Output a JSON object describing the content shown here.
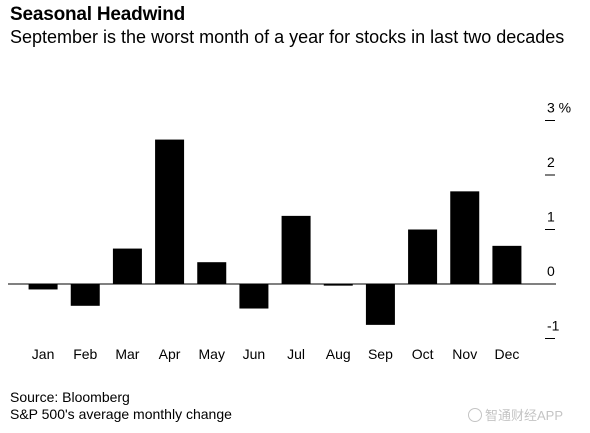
{
  "header": {
    "title": "Seasonal Headwind",
    "subtitle": "September is the worst month of a year for stocks in last two decades"
  },
  "footer": {
    "source": "Source: Bloomberg",
    "note": "S&P 500's average monthly change"
  },
  "watermark": {
    "text": "智通财经APP"
  },
  "chart_data": {
    "type": "bar",
    "categories": [
      "Jan",
      "Feb",
      "Mar",
      "Apr",
      "May",
      "Jun",
      "Jul",
      "Aug",
      "Sep",
      "Oct",
      "Nov",
      "Dec"
    ],
    "values": [
      -0.1,
      -0.4,
      0.65,
      2.65,
      0.4,
      -0.45,
      1.25,
      -0.03,
      -0.75,
      1.0,
      1.7,
      0.7
    ],
    "y_ticks": [
      {
        "value": 3,
        "label": "3 %"
      },
      {
        "value": 2,
        "label": "2"
      },
      {
        "value": 1,
        "label": "1"
      },
      {
        "value": 0,
        "label": "0"
      },
      {
        "value": -1,
        "label": "-1"
      }
    ],
    "ylim": [
      -1,
      3
    ],
    "axis_position": "right",
    "grid": false,
    "bar_color": "#000000"
  }
}
